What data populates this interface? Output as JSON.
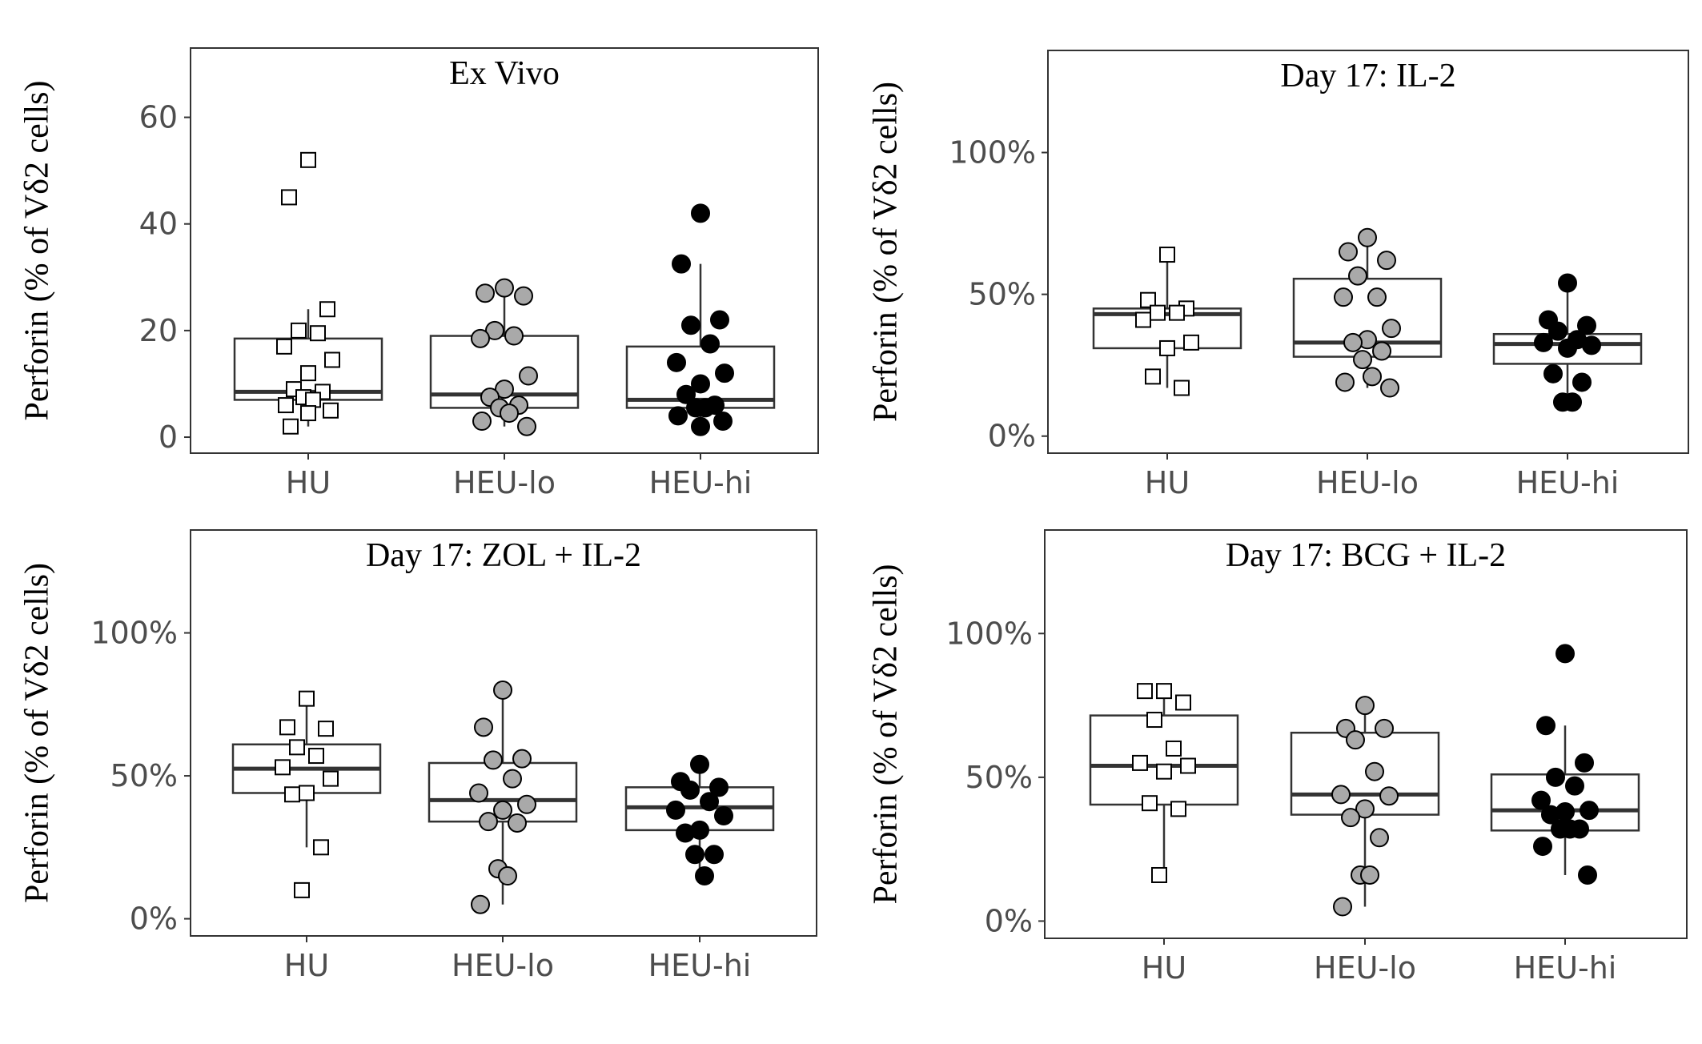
{
  "chart_data": [
    {
      "type": "box",
      "title": "Ex Vivo",
      "ylabel": "Perforin  (% of  Vδ2 cells)",
      "categories": [
        "HU",
        "HEU-lo",
        "HEU-hi"
      ],
      "y_ticks": [
        0,
        20,
        40,
        60
      ],
      "y_tick_labels": [
        "0",
        "20",
        "40",
        "60"
      ],
      "ylim": [
        -3,
        73
      ],
      "groups": [
        {
          "name": "HU",
          "marker": "square",
          "fill": "#ffffff",
          "q1": 7,
          "median": 8.5,
          "q3": 18.5,
          "whisker_low": 2,
          "whisker_high": 24,
          "points": [
            52,
            45,
            24,
            20,
            19.5,
            17,
            14.5,
            12,
            9,
            8.5,
            7.5,
            7,
            6,
            5,
            4.5,
            2
          ]
        },
        {
          "name": "HEU-lo",
          "marker": "circle",
          "fill": "#a9a9a9",
          "q1": 5.5,
          "median": 8,
          "q3": 19,
          "whisker_low": 2,
          "whisker_high": 28,
          "points": [
            28,
            27,
            26.5,
            20,
            19,
            18.5,
            11.5,
            9,
            7.5,
            6,
            5.5,
            4.5,
            3,
            2
          ]
        },
        {
          "name": "HEU-hi",
          "marker": "circle",
          "fill": "#000000",
          "q1": 5.5,
          "median": 7,
          "q3": 17,
          "whisker_low": 2,
          "whisker_high": 32.5,
          "points": [
            42,
            32.5,
            22,
            21,
            17.5,
            14,
            12,
            10,
            8,
            6,
            5.5,
            5.5,
            4,
            3,
            2
          ]
        }
      ]
    },
    {
      "type": "box",
      "title": "Day 17: IL-2",
      "ylabel": "Perforin  (% of  Vδ2 cells)",
      "categories": [
        "HU",
        "HEU-lo",
        "HEU-hi"
      ],
      "y_ticks": [
        0,
        50,
        100
      ],
      "y_tick_labels": [
        "0%",
        "50%",
        "100%"
      ],
      "ylim": [
        -6,
        136
      ],
      "groups": [
        {
          "name": "HU",
          "marker": "square",
          "fill": "#ffffff",
          "q1": 31,
          "median": 43,
          "q3": 45,
          "whisker_low": 17,
          "whisker_high": 64,
          "points": [
            64,
            48,
            45,
            43.5,
            43.5,
            41,
            33,
            31,
            21,
            17
          ]
        },
        {
          "name": "HEU-lo",
          "marker": "circle",
          "fill": "#a9a9a9",
          "q1": 28,
          "median": 33,
          "q3": 55.5,
          "whisker_low": 17,
          "whisker_high": 70,
          "points": [
            70,
            65,
            62,
            56.5,
            49,
            49,
            38,
            34,
            33,
            30,
            27,
            21,
            19,
            17
          ]
        },
        {
          "name": "HEU-hi",
          "marker": "circle",
          "fill": "#000000",
          "q1": 25.5,
          "median": 32.5,
          "q3": 36,
          "whisker_low": 12,
          "whisker_high": 54,
          "points": [
            54,
            41,
            39,
            37,
            34,
            33,
            32,
            31,
            22,
            19,
            12,
            12
          ]
        }
      ]
    },
    {
      "type": "box",
      "title": "Day 17: ZOL + IL-2",
      "ylabel": "Perforin  (% of  Vδ2 cells)",
      "categories": [
        "HU",
        "HEU-lo",
        "HEU-hi"
      ],
      "y_ticks": [
        0,
        50,
        100
      ],
      "y_tick_labels": [
        "0%",
        "50%",
        "100%"
      ],
      "ylim": [
        -6,
        136
      ],
      "groups": [
        {
          "name": "HU",
          "marker": "square",
          "fill": "#ffffff",
          "q1": 44,
          "median": 52.5,
          "q3": 61,
          "whisker_low": 25,
          "whisker_high": 77,
          "points": [
            77,
            67,
            66.5,
            60,
            57,
            53,
            49,
            44,
            43.5,
            25,
            10
          ]
        },
        {
          "name": "HEU-lo",
          "marker": "circle",
          "fill": "#a9a9a9",
          "q1": 34,
          "median": 41.5,
          "q3": 54.5,
          "whisker_low": 5,
          "whisker_high": 80,
          "points": [
            80,
            67,
            56,
            55.5,
            49,
            44,
            40,
            38,
            34,
            33.5,
            17.5,
            15,
            5
          ]
        },
        {
          "name": "HEU-hi",
          "marker": "circle",
          "fill": "#000000",
          "q1": 31,
          "median": 39,
          "q3": 46,
          "whisker_low": 15,
          "whisker_high": 54,
          "points": [
            54,
            48,
            46,
            45,
            41,
            38,
            36,
            31,
            30,
            22.5,
            22.5,
            15
          ]
        }
      ]
    },
    {
      "type": "box",
      "title": "Day 17: BCG + IL-2",
      "ylabel": "Perforin  (% of  Vδ2 cells)",
      "categories": [
        "HU",
        "HEU-lo",
        "HEU-hi"
      ],
      "y_ticks": [
        0,
        50,
        100
      ],
      "y_tick_labels": [
        "0%",
        "50%",
        "100%"
      ],
      "ylim": [
        -6,
        136
      ],
      "groups": [
        {
          "name": "HU",
          "marker": "square",
          "fill": "#ffffff",
          "q1": 40.5,
          "median": 54,
          "q3": 71.5,
          "whisker_low": 16,
          "whisker_high": 80,
          "points": [
            80,
            80,
            76,
            70,
            60,
            55,
            54,
            52,
            41,
            39,
            16
          ]
        },
        {
          "name": "HEU-lo",
          "marker": "circle",
          "fill": "#a9a9a9",
          "q1": 37,
          "median": 44,
          "q3": 65.5,
          "whisker_low": 5,
          "whisker_high": 75,
          "points": [
            75,
            67,
            67,
            63,
            52,
            44,
            43.5,
            39,
            36,
            29,
            16,
            16,
            5
          ]
        },
        {
          "name": "HEU-hi",
          "marker": "circle",
          "fill": "#000000",
          "q1": 31.5,
          "median": 38.5,
          "q3": 51,
          "whisker_low": 16,
          "whisker_high": 68,
          "points": [
            93,
            68,
            55,
            50,
            47,
            42,
            38.5,
            38,
            37,
            32,
            32,
            32,
            26,
            16
          ]
        }
      ]
    }
  ]
}
